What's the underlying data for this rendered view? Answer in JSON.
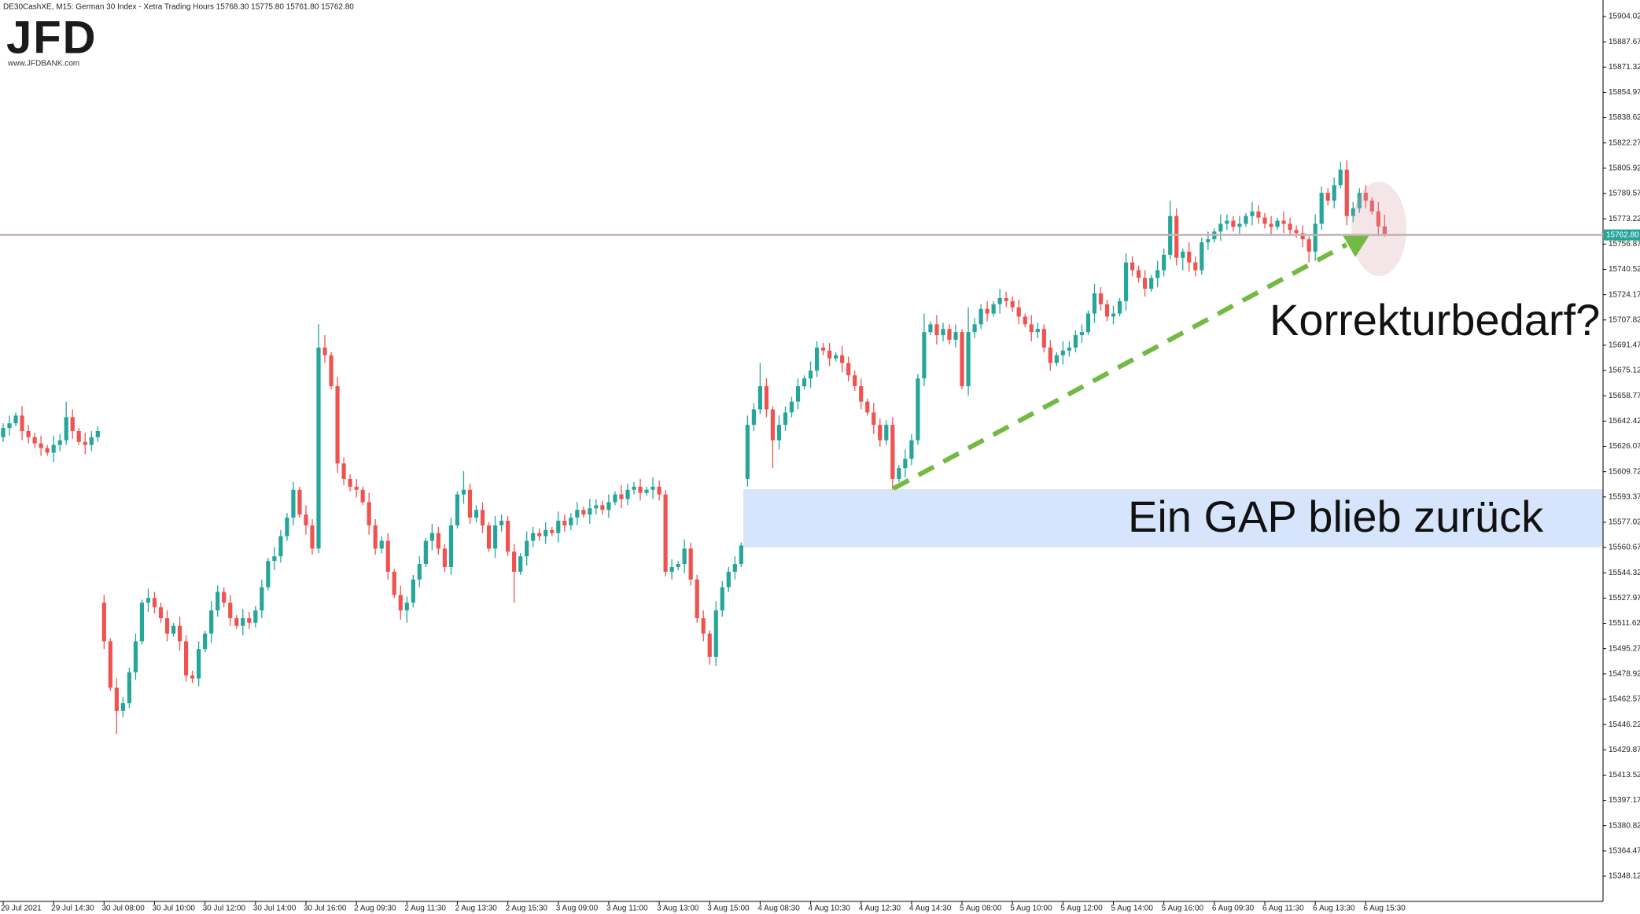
{
  "logo": {
    "text": "JFD",
    "url": "www.JFDBANK.com"
  },
  "chart_data": {
    "type": "candlestick",
    "title": "DE30CashXE, M15:  German 30 Index  - Xetra Trading Hours  15768.30 15775.80 15761.80 15762.80",
    "up_color": "#26a69a",
    "down_color": "#ef5350",
    "ylim": [
      15331.85,
      15914.7
    ],
    "yticks": [
      15904.02,
      15887.67,
      15871.32,
      15854.97,
      15838.62,
      15822.27,
      15805.92,
      15789.57,
      15773.22,
      15756.87,
      15740.52,
      15724.17,
      15707.82,
      15691.47,
      15675.12,
      15658.77,
      15642.42,
      15626.07,
      15609.72,
      15593.37,
      15577.02,
      15560.67,
      15544.32,
      15527.97,
      15511.62,
      15495.27,
      15478.92,
      15462.57,
      15446.22,
      15429.87,
      15413.52,
      15397.17,
      15380.82,
      15364.47,
      15348.12
    ],
    "last_price": {
      "value": 15762.8,
      "label": "15762.80"
    },
    "annotations": [
      "Korrekturbedarf?",
      "Ein GAP blieb zurück"
    ],
    "categories": [
      "29 Jul 2021",
      null,
      null,
      null,
      null,
      null,
      null,
      null,
      "29 Jul 14:30",
      null,
      null,
      null,
      null,
      null,
      null,
      null,
      "30 Jul 08:00",
      null,
      null,
      null,
      null,
      null,
      null,
      null,
      "30 Jul 10:00",
      null,
      null,
      null,
      null,
      null,
      null,
      null,
      "30 Jul 12:00",
      null,
      null,
      null,
      null,
      null,
      null,
      null,
      "30 Jul 14:00",
      null,
      null,
      null,
      null,
      null,
      null,
      null,
      "30 Jul 16:00",
      null,
      null,
      null,
      null,
      null,
      null,
      null,
      "2 Aug 09:30",
      null,
      null,
      null,
      null,
      null,
      null,
      null,
      "2 Aug 11:30",
      null,
      null,
      null,
      null,
      null,
      null,
      null,
      "2 Aug 13:30",
      null,
      null,
      null,
      null,
      null,
      null,
      null,
      "2 Aug 15:30",
      null,
      null,
      null,
      null,
      null,
      null,
      null,
      "3 Aug 09:00",
      null,
      null,
      null,
      null,
      null,
      null,
      null,
      "3 Aug 11:00",
      null,
      null,
      null,
      null,
      null,
      null,
      null,
      "3 Aug 13:00",
      null,
      null,
      null,
      null,
      null,
      null,
      null,
      "3 Aug 15:00",
      null,
      null,
      null,
      null,
      null,
      null,
      null,
      "4 Aug 08:30",
      null,
      null,
      null,
      null,
      null,
      null,
      null,
      "4 Aug 10:30",
      null,
      null,
      null,
      null,
      null,
      null,
      null,
      "4 Aug 12:30",
      null,
      null,
      null,
      null,
      null,
      null,
      null,
      "4 Aug 14:30",
      null,
      null,
      null,
      null,
      null,
      null,
      null,
      "5 Aug 08:00",
      null,
      null,
      null,
      null,
      null,
      null,
      null,
      "5 Aug 10:00",
      null,
      null,
      null,
      null,
      null,
      null,
      null,
      "5 Aug 12:00",
      null,
      null,
      null,
      null,
      null,
      null,
      null,
      "5 Aug 14:00",
      null,
      null,
      null,
      null,
      null,
      null,
      null,
      "5 Aug 16:00",
      null,
      null,
      null,
      null,
      null,
      null,
      null,
      "6 Aug 09:30",
      null,
      null,
      null,
      null,
      null,
      null,
      null,
      "6 Aug 11:30",
      null,
      null,
      null,
      null,
      null,
      null,
      null,
      "6 Aug 13:30",
      null,
      null,
      null,
      null,
      null,
      null,
      null,
      "6 Aug 15:30",
      null,
      null,
      null
    ],
    "open": [
      15632,
      15638,
      15641,
      15646,
      15636,
      15632,
      15628,
      15625,
      15622,
      15627,
      15630,
      15645,
      15636,
      15629,
      15627,
      15632,
      15525,
      15500,
      15470,
      15455,
      15460,
      15480,
      15500,
      15525,
      15528,
      15522,
      15515,
      15505,
      15510,
      15500,
      15478,
      15476,
      15495,
      15505,
      15520,
      15532,
      15525,
      15515,
      15510,
      15515,
      15512,
      15520,
      15535,
      15552,
      15555,
      15568,
      15580,
      15598,
      15582,
      15575,
      15560,
      15690,
      15685,
      15665,
      15615,
      15605,
      15600,
      15598,
      15590,
      15575,
      15560,
      15565,
      15545,
      15530,
      15520,
      15525,
      15540,
      15550,
      15565,
      15570,
      15560,
      15548,
      15575,
      15595,
      15598,
      15580,
      15585,
      15575,
      15560,
      15575,
      15578,
      15558,
      15545,
      15555,
      15565,
      15570,
      15568,
      15572,
      15570,
      15578,
      15575,
      15580,
      15585,
      15582,
      15586,
      15588,
      15585,
      15590,
      15595,
      15592,
      15598,
      15600,
      15596,
      15598,
      15600,
      15595,
      15545,
      15548,
      15550,
      15560,
      15540,
      15515,
      15505,
      15490,
      15520,
      15535,
      15545,
      15550,
      15605,
      15640,
      15650,
      15665,
      15650,
      15630,
      15640,
      15648,
      15655,
      15665,
      15670,
      15675,
      15690,
      15688,
      15683,
      15685,
      15680,
      15672,
      15665,
      15655,
      15648,
      15640,
      15630,
      15640,
      15605,
      15612,
      15618,
      15630,
      15670,
      15700,
      15705,
      15698,
      15702,
      15695,
      15700,
      15665,
      15700,
      15705,
      15715,
      15712,
      15718,
      15722,
      15720,
      15716,
      15710,
      15705,
      15700,
      15702,
      15690,
      15680,
      15685,
      15688,
      15690,
      15698,
      15700,
      15712,
      15725,
      15718,
      15710,
      15712,
      15720,
      15745,
      15740,
      15735,
      15728,
      15735,
      15740,
      15750,
      15775,
      15748,
      15752,
      15745,
      15740,
      15758,
      15760,
      15765,
      15770,
      15772,
      15768,
      15770,
      15775,
      15778,
      15774,
      15770,
      15768,
      15772,
      15770,
      15766,
      15764,
      15760,
      15752,
      15770,
      15790,
      15785,
      15795,
      15805,
      15775,
      15780,
      15790,
      15785,
      15778,
      15768.3
    ],
    "high": [
      15641,
      15646,
      15648,
      15652,
      15640,
      15635,
      15633,
      15627,
      15633,
      15634,
      15655,
      15650,
      15638,
      15635,
      15636,
      15639,
      15530,
      15502,
      15476,
      15464,
      15483,
      15505,
      15527,
      15534,
      15532,
      15525,
      15520,
      15512,
      15516,
      15504,
      15481,
      15500,
      15507,
      15526,
      15536,
      15535,
      15530,
      15517,
      15521,
      15519,
      15523,
      15540,
      15554,
      15561,
      15572,
      15583,
      15603,
      15600,
      15588,
      15579,
      15705,
      15698,
      15687,
      15671,
      15619,
      15608,
      15605,
      15600,
      15596,
      15579,
      15568,
      15570,
      15547,
      15536,
      15529,
      15543,
      15555,
      15567,
      15576,
      15574,
      15563,
      15580,
      15597,
      15610,
      15602,
      15588,
      15590,
      15577,
      15581,
      15582,
      15581,
      15563,
      15557,
      15571,
      15574,
      15573,
      15577,
      15574,
      15584,
      15582,
      15583,
      15590,
      15587,
      15592,
      15592,
      15591,
      15595,
      15597,
      15601,
      15602,
      15603,
      15605,
      15600,
      15606,
      15604,
      15598,
      15553,
      15552,
      15566,
      15564,
      15543,
      15520,
      15507,
      15526,
      15539,
      15548,
      15555,
      15564,
      15646,
      15654,
      15680,
      15670,
      15652,
      15646,
      15652,
      15658,
      15670,
      15672,
      15681,
      15694,
      15693,
      15693,
      15687,
      15691,
      15684,
      15675,
      15670,
      15657,
      15654,
      15644,
      15643,
      15645,
      15614,
      15624,
      15634,
      15673,
      15712,
      15707,
      15711,
      15706,
      15705,
      15705,
      15702,
      15716,
      15709,
      15718,
      15720,
      15720,
      15728,
      15726,
      15723,
      15721,
      15712,
      15711,
      15706,
      15705,
      15695,
      15687,
      15694,
      15694,
      15701,
      15705,
      15714,
      15731,
      15729,
      15721,
      15717,
      15722,
      15751,
      15749,
      15743,
      15740,
      15737,
      15746,
      15754,
      15785,
      15780,
      15754,
      15758,
      15749,
      15761,
      15765,
      15767,
      15776,
      15776,
      15775,
      15775,
      15777,
      15784,
      15782,
      15777,
      15775,
      15774,
      15778,
      15774,
      15769,
      15769,
      15762,
      15776,
      15794,
      15793,
      15800,
      15810,
      15811,
      15784,
      15793,
      15795,
      15787,
      15784,
      15775.8
    ],
    "low": [
      15629,
      15633,
      15639,
      15630,
      15628,
      15625,
      15620,
      15620,
      15616,
      15623,
      15627,
      15631,
      15627,
      15621,
      15623,
      15629,
      15495,
      15468,
      15440,
      15451,
      15457,
      15475,
      15498,
      15519,
      15518,
      15512,
      15500,
      15503,
      15494,
      15474,
      15473,
      15471,
      15493,
      15499,
      15516,
      15522,
      15510,
      15508,
      15504,
      15508,
      15509,
      15515,
      15533,
      15546,
      15551,
      15565,
      15575,
      15580,
      15569,
      15556,
      15557,
      15680,
      15663,
      15609,
      15601,
      15597,
      15593,
      15588,
      15569,
      15556,
      15557,
      15540,
      15528,
      15514,
      15512,
      15522,
      15535,
      15548,
      15559,
      15556,
      15545,
      15543,
      15573,
      15589,
      15576,
      15577,
      15570,
      15558,
      15554,
      15571,
      15555,
      15525,
      15543,
      15549,
      15561,
      15565,
      15563,
      15568,
      15564,
      15571,
      15572,
      15575,
      15580,
      15576,
      15582,
      15582,
      15580,
      15588,
      15586,
      15588,
      15595,
      15591,
      15594,
      15592,
      15591,
      15542,
      15540,
      15546,
      15544,
      15536,
      15512,
      15500,
      15485,
      15484,
      15516,
      15532,
      15540,
      15548,
      15600,
      15636,
      15647,
      15645,
      15612,
      15624,
      15636,
      15645,
      15650,
      15663,
      15664,
      15671,
      15685,
      15678,
      15681,
      15674,
      15668,
      15662,
      15650,
      15646,
      15634,
      15626,
      15627,
      15598,
      15603,
      15606,
      15614,
      15627,
      15665,
      15698,
      15692,
      15694,
      15692,
      15690,
      15663,
      15659,
      15696,
      15702,
      15707,
      15710,
      15712,
      15716,
      15713,
      15705,
      15703,
      15694,
      15696,
      15687,
      15675,
      15678,
      15679,
      15684,
      15687,
      15693,
      15698,
      15706,
      15714,
      15707,
      15705,
      15710,
      15714,
      15736,
      15732,
      15723,
      15726,
      15729,
      15736,
      15747,
      15743,
      15740,
      15739,
      15736,
      15737,
      15753,
      15758,
      15759,
      15766,
      15765,
      15763,
      15768,
      15769,
      15770,
      15767,
      15763,
      15766,
      15764,
      15762,
      15761,
      15755,
      15745,
      15746,
      15766,
      15782,
      15780,
      15793,
      15769,
      15771,
      15777,
      15780,
      15776,
      15762,
      15761.8
    ],
    "close": [
      15638,
      15641,
      15646,
      15636,
      15632,
      15628,
      15625,
      15622,
      15627,
      15630,
      15645,
      15636,
      15629,
      15627,
      15632,
      15636,
      15500,
      15470,
      15455,
      15460,
      15480,
      15500,
      15525,
      15528,
      15522,
      15515,
      15505,
      15510,
      15500,
      15478,
      15476,
      15495,
      15505,
      15520,
      15532,
      15525,
      15515,
      15510,
      15515,
      15512,
      15520,
      15535,
      15552,
      15555,
      15568,
      15580,
      15598,
      15582,
      15575,
      15560,
      15690,
      15685,
      15665,
      15615,
      15605,
      15600,
      15598,
      15590,
      15575,
      15560,
      15565,
      15545,
      15530,
      15520,
      15525,
      15540,
      15550,
      15565,
      15570,
      15560,
      15548,
      15575,
      15595,
      15598,
      15580,
      15585,
      15575,
      15560,
      15575,
      15578,
      15558,
      15545,
      15555,
      15565,
      15570,
      15568,
      15572,
      15570,
      15578,
      15575,
      15580,
      15585,
      15582,
      15586,
      15588,
      15585,
      15590,
      15595,
      15592,
      15598,
      15600,
      15596,
      15598,
      15600,
      15595,
      15545,
      15548,
      15550,
      15560,
      15540,
      15515,
      15505,
      15490,
      15520,
      15535,
      15545,
      15550,
      15562,
      15640,
      15650,
      15665,
      15650,
      15630,
      15640,
      15648,
      15655,
      15665,
      15670,
      15675,
      15690,
      15688,
      15683,
      15685,
      15680,
      15672,
      15665,
      15655,
      15648,
      15640,
      15630,
      15640,
      15605,
      15612,
      15618,
      15630,
      15670,
      15700,
      15705,
      15698,
      15702,
      15695,
      15700,
      15665,
      15700,
      15705,
      15715,
      15712,
      15718,
      15722,
      15720,
      15716,
      15710,
      15705,
      15700,
      15702,
      15690,
      15680,
      15685,
      15688,
      15690,
      15698,
      15700,
      15712,
      15725,
      15718,
      15710,
      15712,
      15720,
      15745,
      15740,
      15735,
      15728,
      15735,
      15740,
      15750,
      15775,
      15748,
      15752,
      15745,
      15740,
      15758,
      15760,
      15765,
      15770,
      15772,
      15768,
      15770,
      15775,
      15778,
      15774,
      15770,
      15768,
      15772,
      15770,
      15766,
      15764,
      15760,
      15752,
      15770,
      15790,
      15785,
      15795,
      15805,
      15775,
      15780,
      15790,
      15785,
      15778,
      15768.3,
      15762.8
    ]
  }
}
